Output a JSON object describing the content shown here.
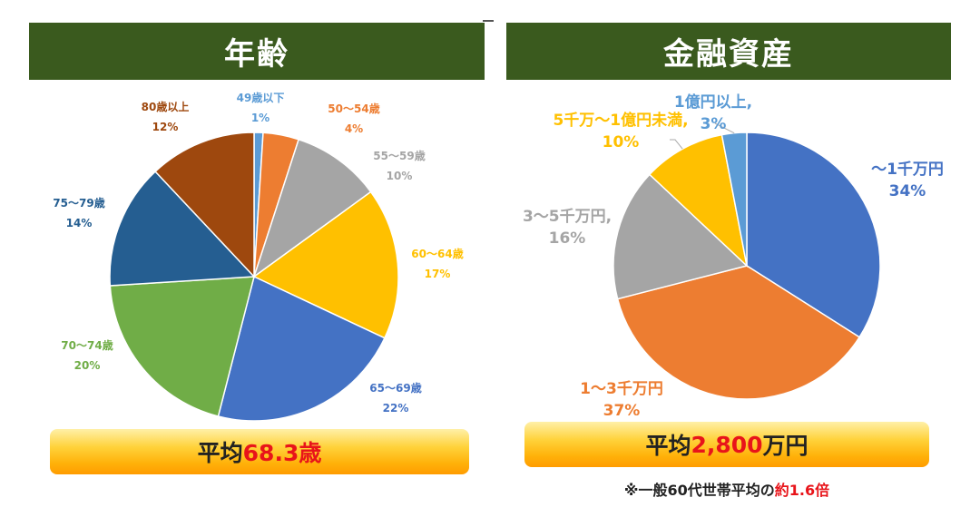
{
  "panels": {
    "left_title": "年齢",
    "right_title": "金融資産"
  },
  "averages": {
    "left_prefix": "平均",
    "left_value": "68.3歳",
    "right_prefix": "平均",
    "right_value": "2,800",
    "right_suffix": "万円"
  },
  "note": {
    "prefix": "※一般60代世帯平均の",
    "highlight": "約1.6倍"
  },
  "chart_data": [
    {
      "type": "pie",
      "title": "年齢",
      "labels": [
        "49歳以下",
        "50〜54歳",
        "55〜59歳",
        "60〜64歳",
        "65〜69歳",
        "70〜74歳",
        "75〜79歳",
        "80歳以上"
      ],
      "percent_labels": [
        "1%",
        "4%",
        "10%",
        "17%",
        "22%",
        "20%",
        "14%",
        "12%"
      ],
      "values": [
        1,
        4,
        10,
        17,
        22,
        20,
        14,
        12
      ],
      "colors": [
        "#5b9bd5",
        "#ed7d31",
        "#a5a5a5",
        "#ffc000",
        "#4472c4",
        "#70ad47",
        "#255e91",
        "#9e480e"
      ]
    },
    {
      "type": "pie",
      "title": "金融資産",
      "labels": [
        "〜1千万円",
        "1〜3千万円",
        "3〜5千万円,",
        "5千万〜1億円未満,",
        "1億円以上,"
      ],
      "percent_labels": [
        "34%",
        "37%",
        "16%",
        "10%",
        "3%"
      ],
      "values": [
        34,
        37,
        16,
        10,
        3
      ],
      "colors": [
        "#4472c4",
        "#ed7d31",
        "#a5a5a5",
        "#ffc000",
        "#5b9bd5"
      ]
    }
  ]
}
